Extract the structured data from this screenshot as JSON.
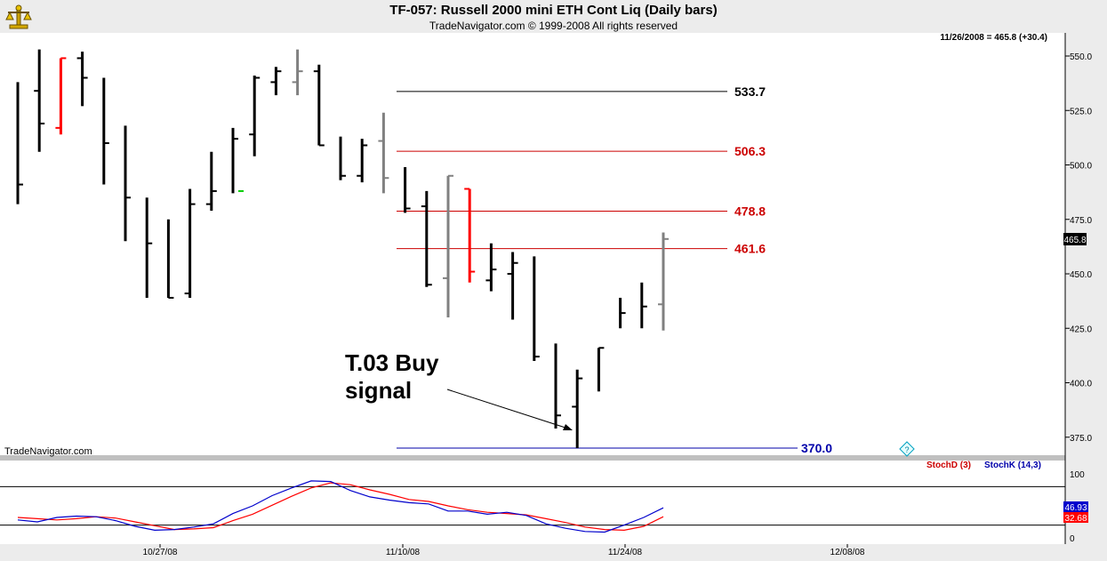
{
  "header": {
    "title": "TF-057:  Russell 2000 mini ETH Cont Liq  (Daily bars)",
    "subtitle": "TradeNavigator.com © 1999-2008 All rights reserved"
  },
  "quote_readout": "11/26/2008 = 465.8 (+30.4)",
  "last_price_tag": "465.8",
  "watermark": "TradeNavigator.com",
  "annotation": {
    "line1": "T.03 Buy",
    "line2": "signal"
  },
  "indicator_legend": {
    "stoch_d": "StochD (3)",
    "stoch_k": "StochK (14,3)"
  },
  "indicator_values": {
    "k": "46.93",
    "d": "32.68"
  },
  "icons": {
    "logo": "scales-icon",
    "help": "help-diamond-icon"
  },
  "colors": {
    "black_bar": "#000000",
    "gray_bar": "#808080",
    "red_bar": "#ff0000",
    "green_mark": "#00cc00",
    "level_black": "#000000",
    "level_red": "#cc0000",
    "level_blue": "#0000aa",
    "stoch_d": "#ff0000",
    "stoch_k": "#0000cc"
  },
  "chart_data": {
    "type": "ohlc",
    "price_axis": {
      "ticks": [
        375,
        400,
        425,
        450,
        475,
        500,
        525,
        550
      ]
    },
    "date_axis": {
      "labels": [
        "10/27/08",
        "11/10/08",
        "11/24/08",
        "12/08/08"
      ]
    },
    "bars": [
      {
        "o": null,
        "h": 538,
        "l": 482,
        "c": 491,
        "color": "black"
      },
      {
        "o": 534,
        "h": 553,
        "l": 506,
        "c": 519,
        "color": "black"
      },
      {
        "o": 517,
        "h": 549,
        "l": 514,
        "c": 549,
        "color": "red"
      },
      {
        "o": 549,
        "h": 552,
        "l": 527,
        "c": 540,
        "color": "black"
      },
      {
        "o": null,
        "h": 540,
        "l": 491,
        "c": 510,
        "color": "black"
      },
      {
        "o": null,
        "h": 518,
        "l": 465,
        "c": 485,
        "color": "black"
      },
      {
        "o": null,
        "h": 485,
        "l": 439,
        "c": 464,
        "color": "black"
      },
      {
        "o": null,
        "h": 475,
        "l": 439,
        "c": 439,
        "color": "black"
      },
      {
        "o": 441,
        "h": 489,
        "l": 439,
        "c": 482,
        "color": "black"
      },
      {
        "o": 482,
        "h": 506,
        "l": 479,
        "c": 488,
        "color": "black"
      },
      {
        "o": null,
        "h": 517,
        "l": 487,
        "c": 512,
        "color": "black"
      },
      {
        "o": 514,
        "h": 541,
        "l": 504,
        "c": 540,
        "color": "black"
      },
      {
        "o": 538,
        "h": 545,
        "l": 532,
        "c": 543,
        "color": "black"
      },
      {
        "o": 538,
        "h": 553,
        "l": 532,
        "c": 543,
        "color": "gray"
      },
      {
        "o": 543,
        "h": 546,
        "l": 509,
        "c": 509,
        "color": "black"
      },
      {
        "o": null,
        "h": 513,
        "l": 493,
        "c": 495,
        "color": "black"
      },
      {
        "o": 495,
        "h": 512,
        "l": 492,
        "c": 509,
        "color": "black"
      },
      {
        "o": 511,
        "h": 524,
        "l": 487,
        "c": 494,
        "color": "gray"
      },
      {
        "o": null,
        "h": 499,
        "l": 478,
        "c": 480,
        "color": "black"
      },
      {
        "o": 481,
        "h": 488,
        "l": 444,
        "c": 445,
        "color": "black"
      },
      {
        "o": 448,
        "h": 495,
        "l": 430,
        "c": 495,
        "color": "gray"
      },
      {
        "o": 489,
        "h": 489,
        "l": 446,
        "c": 451,
        "color": "red"
      },
      {
        "o": 447,
        "h": 464,
        "l": 442,
        "c": 452,
        "color": "black"
      },
      {
        "o": 450,
        "h": 460,
        "l": 429,
        "c": 455,
        "color": "black"
      },
      {
        "o": null,
        "h": 458,
        "l": 410,
        "c": 412,
        "color": "black"
      },
      {
        "o": null,
        "h": 418,
        "l": 379,
        "c": 385,
        "color": "black"
      },
      {
        "o": 389,
        "h": 406,
        "l": 370,
        "c": 402,
        "color": "black"
      },
      {
        "o": null,
        "h": 416,
        "l": 396,
        "c": 416,
        "color": "black"
      },
      {
        "o": null,
        "h": 439,
        "l": 425,
        "c": 432,
        "color": "black"
      },
      {
        "o": null,
        "h": 446,
        "l": 425,
        "c": 435,
        "color": "black"
      },
      {
        "o": 436,
        "h": 469,
        "l": 424,
        "c": 466,
        "color": "gray"
      }
    ],
    "levels": [
      {
        "value": 533.7,
        "label": "533.7",
        "color": "level_black"
      },
      {
        "value": 506.3,
        "label": "506.3",
        "color": "level_red"
      },
      {
        "value": 478.8,
        "label": "478.8",
        "color": "level_red"
      },
      {
        "value": 461.6,
        "label": "461.6",
        "color": "level_red"
      },
      {
        "value": 370.0,
        "label": "370.0",
        "color": "level_blue"
      }
    ],
    "indicator": {
      "axis_ticks": [
        0,
        50,
        100
      ],
      "overbought": 80,
      "oversold": 20,
      "stoch_k": [
        28,
        25,
        32,
        34,
        33,
        27,
        18,
        12,
        13,
        17,
        22,
        38,
        50,
        66,
        78,
        89,
        88,
        74,
        64,
        59,
        55,
        53,
        42,
        42,
        37,
        40,
        35,
        22,
        15,
        10,
        9,
        20,
        32,
        47
      ],
      "stoch_d": [
        32,
        30,
        28,
        30,
        33,
        31,
        25,
        19,
        13,
        14,
        16,
        27,
        37,
        51,
        65,
        78,
        86,
        83,
        75,
        68,
        60,
        57,
        50,
        44,
        40,
        38,
        36,
        30,
        24,
        17,
        13,
        12,
        18,
        33
      ]
    }
  }
}
